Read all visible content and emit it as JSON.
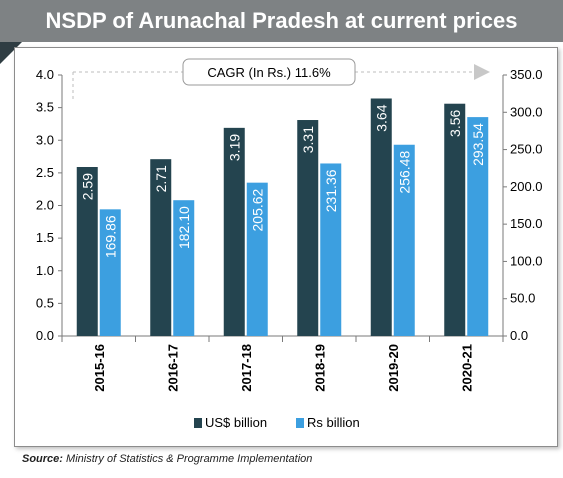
{
  "title": "NSDP of Arunachal Pradesh at current prices",
  "annotation": "CAGR (In Rs.) 11.6%",
  "source_label": "Source:",
  "source_text": "Ministry of Statistics & Programme Implementation",
  "colors": {
    "us_dollar": "#24444f",
    "rupee": "#3c9fe0",
    "title_bg": "#7e8284"
  },
  "chart_data": {
    "type": "bar",
    "categories": [
      "2015-16",
      "2016-17",
      "2017-18",
      "2018-19",
      "2019-20",
      "2020-21"
    ],
    "series": [
      {
        "name": "US$ billion",
        "axis": "left",
        "values": [
          2.59,
          2.71,
          3.19,
          3.31,
          3.64,
          3.56
        ],
        "labels": [
          "2.59",
          "2.71",
          "3.19",
          "3.31",
          "3.64",
          "3.56"
        ]
      },
      {
        "name": "Rs billion",
        "axis": "right",
        "values": [
          169.86,
          182.1,
          205.62,
          231.36,
          256.48,
          293.54
        ],
        "labels": [
          "169.86",
          "182.10",
          "205.62",
          "231.36",
          "256.48",
          "293.54"
        ]
      }
    ],
    "y_left": {
      "min": 0,
      "max": 4,
      "ticks": [
        "0.0",
        "0.5",
        "1.0",
        "1.5",
        "2.0",
        "2.5",
        "3.0",
        "3.5",
        "4.0"
      ]
    },
    "y_right": {
      "min": 0,
      "max": 350,
      "ticks": [
        "0.0",
        "50.0",
        "100.0",
        "150.0",
        "200.0",
        "250.0",
        "300.0",
        "350.0"
      ]
    },
    "legend_position": "bottom",
    "grid": false
  }
}
